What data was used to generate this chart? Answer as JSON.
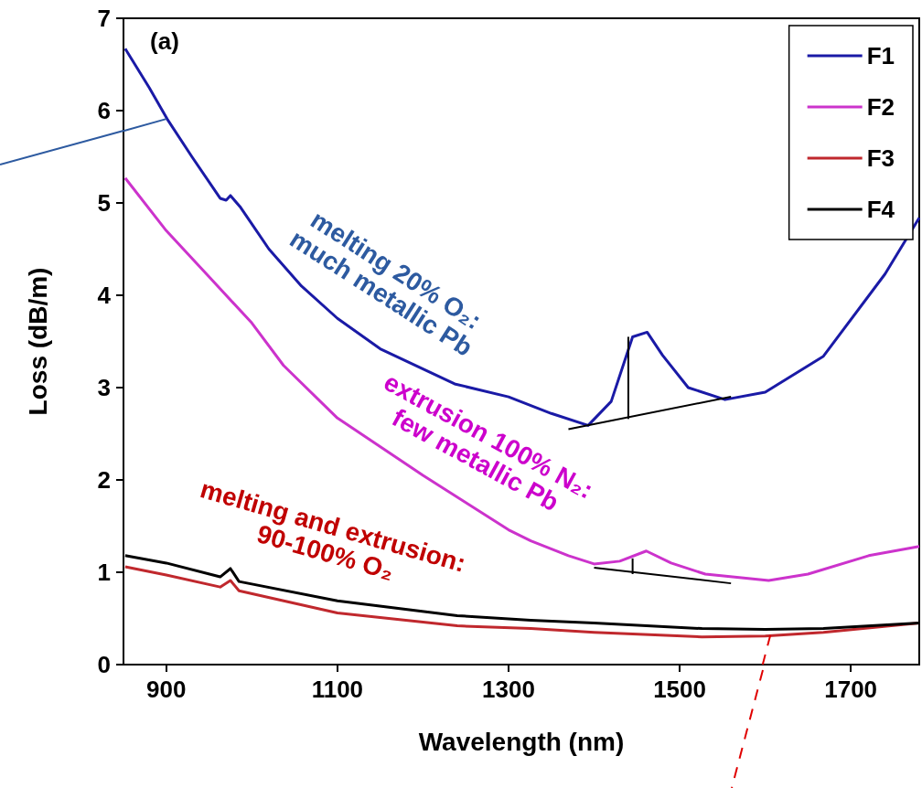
{
  "chart_data": {
    "type": "line",
    "xlabel": "Wavelength (nm)",
    "ylabel": "Loss (dB/m)",
    "xlim": [
      850,
      1780
    ],
    "xticks": [
      900,
      1100,
      1300,
      1500,
      1700
    ],
    "ylim": [
      0,
      7
    ],
    "yticks": [
      0,
      1,
      2,
      3,
      4,
      5,
      6,
      7
    ],
    "grid": false,
    "legend": "top right",
    "marker": "none",
    "line_style": "solid",
    "series": [
      {
        "name": "F1",
        "color": "#1a1aa6",
        "x": [
          852,
          880,
          901,
          930,
          963,
          970,
          975,
          987,
          1020,
          1058,
          1100,
          1150,
          1237,
          1300,
          1350,
          1393,
          1420,
          1445,
          1462,
          1480,
          1510,
          1553,
          1600,
          1668,
          1740,
          1780
        ],
        "values": [
          6.67,
          6.25,
          5.91,
          5.5,
          5.05,
          5.03,
          5.08,
          4.95,
          4.5,
          4.1,
          3.75,
          3.42,
          3.04,
          2.9,
          2.72,
          2.59,
          2.85,
          3.55,
          3.6,
          3.35,
          3.0,
          2.87,
          2.95,
          3.34,
          4.23,
          4.84
        ]
      },
      {
        "name": "F2",
        "color": "#cc33cc",
        "x": [
          852,
          900,
          950,
          1000,
          1037,
          1100,
          1200,
          1300,
          1326,
          1370,
          1400,
          1430,
          1461,
          1490,
          1530,
          1604,
          1650,
          1721,
          1780
        ],
        "values": [
          5.27,
          4.7,
          4.2,
          3.7,
          3.24,
          2.67,
          2.05,
          1.46,
          1.34,
          1.18,
          1.09,
          1.12,
          1.23,
          1.1,
          0.98,
          0.91,
          0.98,
          1.18,
          1.28
        ]
      },
      {
        "name": "F3",
        "color": "#c0282d",
        "x": [
          852,
          900,
          963,
          975,
          985,
          1100,
          1240,
          1326,
          1400,
          1526,
          1600,
          1668,
          1780
        ],
        "values": [
          1.06,
          0.97,
          0.84,
          0.91,
          0.8,
          0.56,
          0.42,
          0.39,
          0.35,
          0.3,
          0.31,
          0.35,
          0.45
        ]
      },
      {
        "name": "F4",
        "color": "#000000",
        "x": [
          852,
          900,
          963,
          975,
          985,
          1100,
          1240,
          1326,
          1400,
          1526,
          1600,
          1668,
          1780
        ],
        "values": [
          1.18,
          1.1,
          0.95,
          1.04,
          0.9,
          0.69,
          0.53,
          0.48,
          0.45,
          0.39,
          0.38,
          0.39,
          0.45
        ]
      },
      {
        "color": "#000000",
        "x": [
          1370,
          1560
        ],
        "values": [
          2.55,
          2.9
        ]
      },
      {
        "color": "#000000",
        "x": [
          1440,
          1440
        ],
        "values": [
          2.66,
          3.55
        ]
      },
      {
        "color": "#000000",
        "x": [
          1400,
          1560
        ],
        "values": [
          1.05,
          0.88
        ]
      },
      {
        "color": "#000000",
        "x": [
          1445,
          1445
        ],
        "values": [
          0.98,
          1.15
        ]
      },
      {
        "color": "#2d5aa0",
        "x": [
          850,
          900
        ],
        "values": [
          5.78,
          5.91
        ]
      },
      {
        "color": "#e00000",
        "line_style": "dashed",
        "x": [
          1606,
          1597
        ],
        "values": [
          0.32,
          0
        ]
      }
    ],
    "annotations": [
      "(a)",
      "melting 20% O₂:\nmuch metallic Pb",
      "extrusion 100% N₂:\nfew metallic Pb",
      "melting and extrusion:\n90-100% O₂"
    ]
  }
}
